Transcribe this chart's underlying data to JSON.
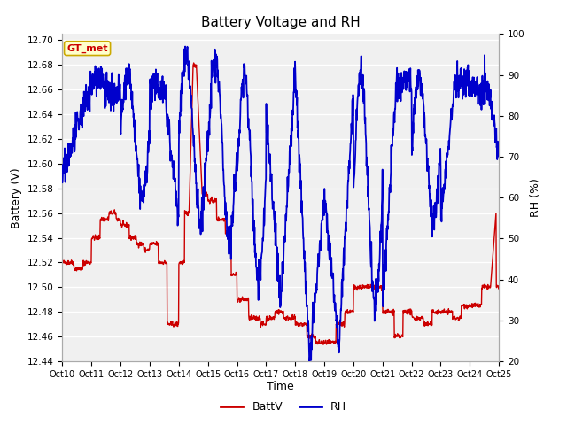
{
  "title": "Battery Voltage and RH",
  "xlabel": "Time",
  "ylabel_left": "Battery (V)",
  "ylabel_right": "RH (%)",
  "ylim_left": [
    12.44,
    12.705
  ],
  "ylim_right": [
    20,
    100
  ],
  "yticks_left": [
    12.44,
    12.46,
    12.48,
    12.5,
    12.52,
    12.54,
    12.56,
    12.58,
    12.6,
    12.62,
    12.64,
    12.66,
    12.68,
    12.7
  ],
  "yticks_right": [
    20,
    30,
    40,
    50,
    60,
    70,
    80,
    90,
    100
  ],
  "xtick_labels": [
    "Oct 10",
    "Oct 11",
    "Oct 12",
    "Oct 13",
    "Oct 14",
    "Oct 15",
    "Oct 16",
    "Oct 17",
    "Oct 18",
    "Oct 19",
    "Oct 20",
    "Oct 21",
    "Oct 22",
    "Oct 23",
    "Oct 24",
    "Oct 25"
  ],
  "color_battv": "#cc0000",
  "color_rh": "#0000cc",
  "color_bg_fig": "#c8c8c8",
  "color_bg_plot": "#e0e0e0",
  "color_bg_inner": "#f0f0f0",
  "color_grid": "#ffffff",
  "watermark_text": "GT_met",
  "watermark_bg": "#ffffcc",
  "watermark_border": "#ccaa00",
  "watermark_color": "#cc0000",
  "legend_battv": "BattV",
  "legend_rh": "RH",
  "n_days": 15,
  "n_points": 1500,
  "seed": 42
}
